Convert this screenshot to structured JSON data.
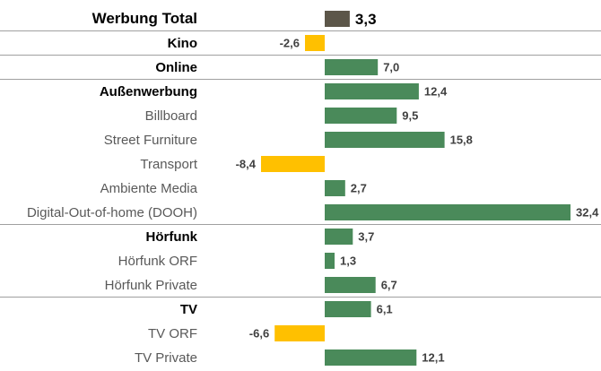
{
  "chart_data": {
    "type": "bar",
    "orientation": "horizontal",
    "categories": [
      "Werbung Total",
      "Kino",
      "Online",
      "Außenwerbung",
      "Billboard",
      "Street Furniture",
      "Transport",
      "Ambiente Media",
      "Digital-Out-of-home (DOOH)",
      "Hörfunk",
      "Hörfunk ORF",
      "Hörfunk Private",
      "TV",
      "TV ORF",
      "TV Private"
    ],
    "values": [
      3.3,
      -2.6,
      7.0,
      12.4,
      9.5,
      15.8,
      -8.4,
      2.7,
      32.4,
      3.7,
      1.3,
      6.7,
      6.1,
      -6.6,
      12.1
    ],
    "value_labels": [
      "3,3",
      "-2,6",
      "7,0",
      "12,4",
      "9,5",
      "15,8",
      "-8,4",
      "2,7",
      "32,4",
      "3,7",
      "1,3",
      "6,7",
      "6,1",
      "-6,6",
      "12,1"
    ],
    "bold_categories": [
      "Werbung Total",
      "Kino",
      "Online",
      "Außenwerbung",
      "Hörfunk",
      "TV"
    ],
    "highlight_category": "Werbung Total",
    "group_separators_after": [
      "Werbung Total",
      "Kino",
      "Online",
      "Digital-Out-of-home (DOOH)",
      "Hörfunk Private"
    ],
    "xlim": [
      -12,
      33
    ],
    "title": "",
    "xlabel": "",
    "ylabel": "",
    "grid": false,
    "colors": {
      "positive": "#4a8a5a",
      "negative": "#ffc000",
      "total": "#5c5649",
      "separator": "#a0a0a0",
      "text_bold": "#000000",
      "text_sub": "#595959",
      "value_text": "#404040"
    }
  }
}
